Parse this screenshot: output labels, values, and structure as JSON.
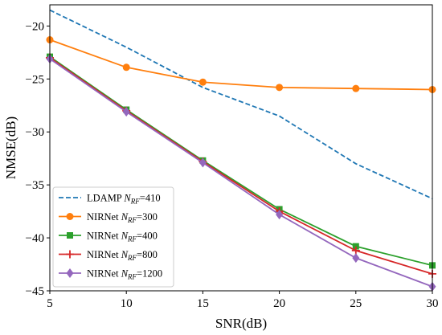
{
  "chart_data": {
    "type": "line",
    "xlabel": "SNR(dB)",
    "ylabel": "NMSE(dB)",
    "xlim": [
      5,
      30
    ],
    "ylim": [
      -45,
      -18
    ],
    "xticks": [
      5,
      10,
      15,
      20,
      25,
      30
    ],
    "yticks": [
      -20,
      -25,
      -30,
      -35,
      -40,
      -45
    ],
    "grid": false,
    "legend_position": "lower-left",
    "x": [
      5,
      10,
      15,
      20,
      25,
      30
    ],
    "series": [
      {
        "name": "LDAMP",
        "nrf": "410",
        "color": "#1f77b4",
        "linestyle": "dashed",
        "marker": "none",
        "values": [
          -18.5,
          -22.0,
          -25.8,
          -28.5,
          -33.0,
          -36.3
        ]
      },
      {
        "name": "NIRNet",
        "nrf": "300",
        "color": "#ff7f0e",
        "linestyle": "solid",
        "marker": "circle",
        "values": [
          -21.3,
          -23.9,
          -25.3,
          -25.8,
          -25.9,
          -26.0
        ]
      },
      {
        "name": "NIRNet",
        "nrf": "400",
        "color": "#2ca02c",
        "linestyle": "solid",
        "marker": "square",
        "values": [
          -22.9,
          -27.9,
          -32.7,
          -37.3,
          -40.8,
          -42.6
        ]
      },
      {
        "name": "NIRNet",
        "nrf": "800",
        "color": "#d62728",
        "linestyle": "solid",
        "marker": "plus",
        "values": [
          -23.0,
          -28.0,
          -32.8,
          -37.5,
          -41.2,
          -43.4
        ]
      },
      {
        "name": "NIRNet",
        "nrf": "1200",
        "color": "#9467bd",
        "linestyle": "solid",
        "marker": "diamond",
        "values": [
          -23.1,
          -28.1,
          -32.9,
          -37.8,
          -41.9,
          -44.6
        ]
      }
    ]
  }
}
